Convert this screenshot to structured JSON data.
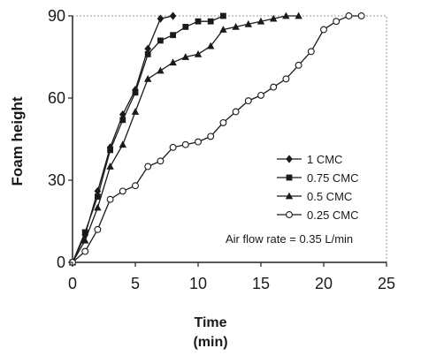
{
  "chart_data": {
    "type": "line",
    "xlabel": "Time",
    "xlabel_unit": "(min)",
    "ylabel": "Foam height",
    "xlim": [
      0,
      25
    ],
    "ylim": [
      0,
      90
    ],
    "xticks": [
      0,
      5,
      10,
      15,
      20,
      25
    ],
    "yticks": [
      0,
      30,
      60,
      90
    ],
    "xtick_labels": [
      "0",
      "5",
      "10",
      "15",
      "20",
      "25"
    ],
    "ytick_labels": [
      "0",
      "30",
      "60",
      "90"
    ],
    "grid": false,
    "legend_position": "right",
    "annotation": "Air flow rate = 0.35 L/min",
    "series": [
      {
        "name": "1 CMC",
        "marker": "diamond",
        "x": [
          0,
          1,
          2,
          3,
          4,
          5,
          6,
          7,
          8
        ],
        "y": [
          0,
          10,
          26,
          42,
          54,
          63,
          78,
          89,
          90
        ]
      },
      {
        "name": "0.75 CMC",
        "marker": "square",
        "x": [
          0,
          1,
          2,
          3,
          4,
          5,
          6,
          7,
          8,
          9,
          10,
          11,
          12
        ],
        "y": [
          0,
          11,
          24,
          41,
          52,
          62,
          76,
          81,
          83,
          86,
          88,
          88,
          90
        ]
      },
      {
        "name": "0.5 CMC",
        "marker": "triangle",
        "x": [
          0,
          1,
          2,
          3,
          4,
          5,
          6,
          7,
          8,
          9,
          10,
          11,
          12,
          13,
          14,
          15,
          16,
          17,
          18
        ],
        "y": [
          0,
          8,
          20,
          35,
          43,
          55,
          67,
          70,
          73,
          75,
          76,
          79,
          85,
          86,
          87,
          88,
          89,
          90,
          90
        ]
      },
      {
        "name": "0.25 CMC",
        "marker": "circle-open",
        "x": [
          0,
          1,
          2,
          3,
          4,
          5,
          6,
          7,
          8,
          9,
          10,
          11,
          12,
          13,
          14,
          15,
          16,
          17,
          18,
          19,
          20,
          21,
          22,
          23
        ],
        "y": [
          0,
          4,
          12,
          23,
          26,
          28,
          35,
          37,
          42,
          43,
          44,
          46,
          51,
          55,
          59,
          61,
          64,
          67,
          72,
          77,
          85,
          88,
          90,
          90
        ]
      }
    ]
  }
}
